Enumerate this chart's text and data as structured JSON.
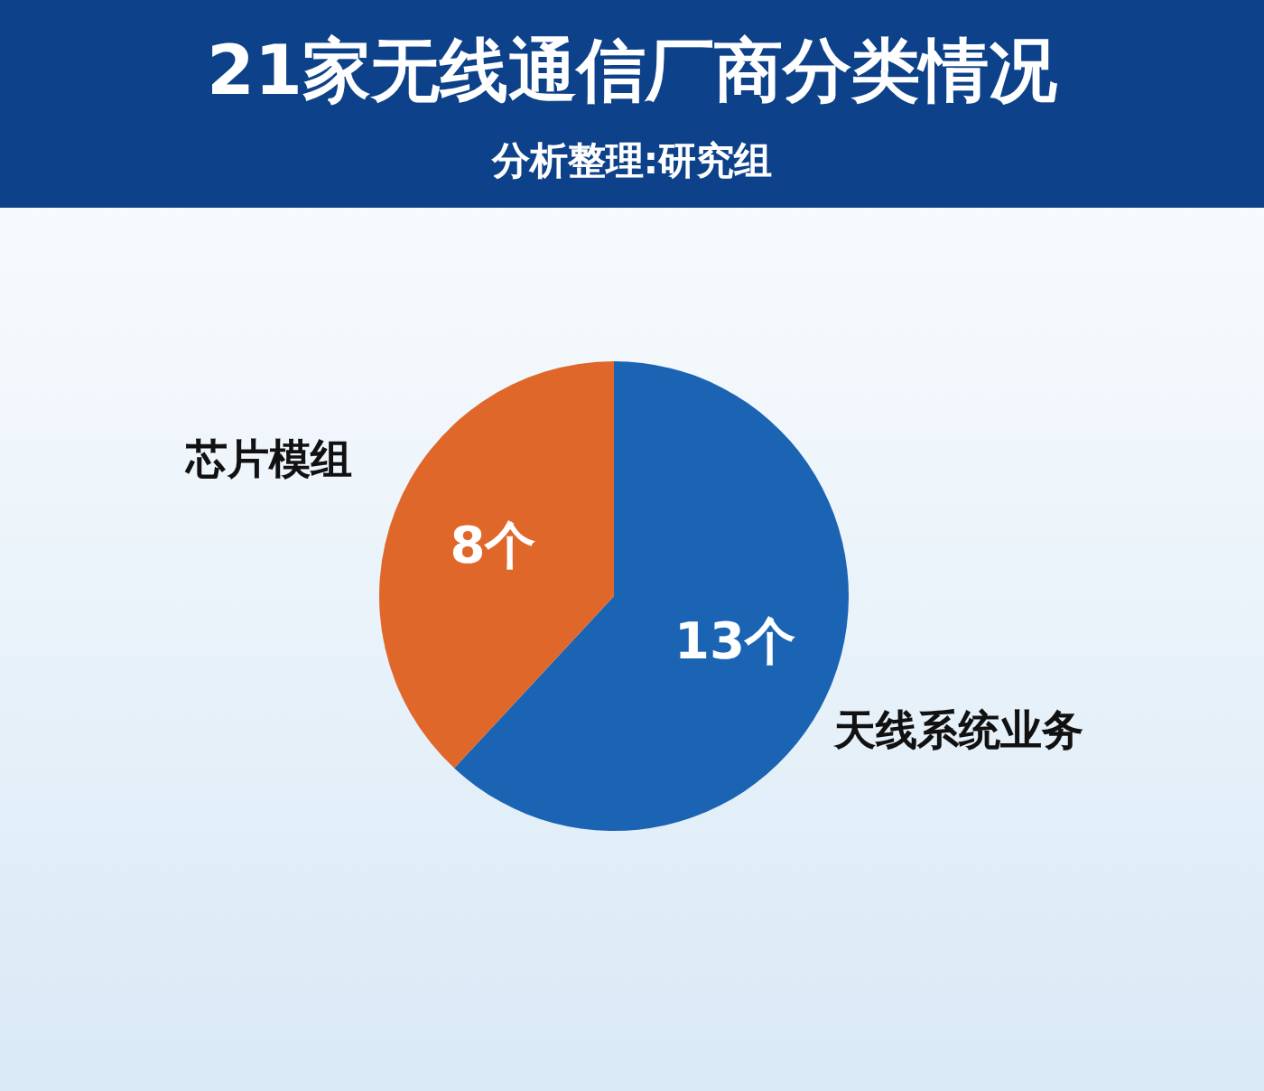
{
  "chart_data": {
    "type": "pie",
    "title": "21家无线通信厂商分类情况",
    "subtitle": "分析整理:研究组",
    "categories": [
      "天线系统业务",
      "芯片模组"
    ],
    "values": [
      13,
      8
    ],
    "colors": [
      "#1b64b4",
      "#e0672a"
    ],
    "value_labels": [
      "13个",
      "8个"
    ]
  }
}
